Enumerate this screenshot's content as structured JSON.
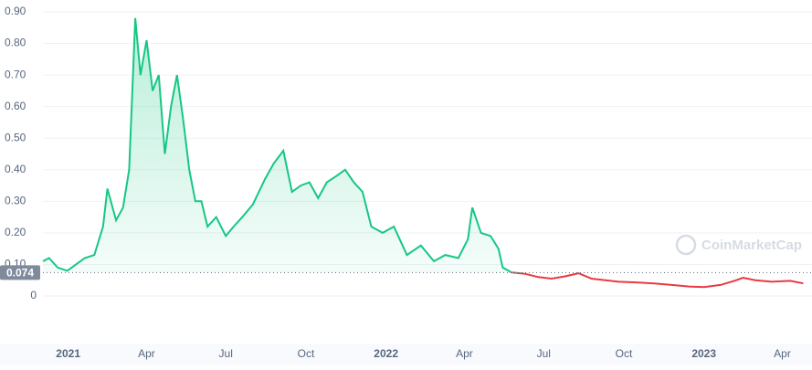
{
  "chart_data": {
    "type": "line",
    "watermark": "CoinMarketCap",
    "x": [
      "2020-12-03",
      "2020-12-10",
      "2020-12-20",
      "2020-12-31",
      "2021-01-10",
      "2021-01-20",
      "2021-01-31",
      "2021-02-10",
      "2021-02-15",
      "2021-02-25",
      "2021-03-05",
      "2021-03-12",
      "2021-03-19",
      "2021-03-25",
      "2021-04-01",
      "2021-04-08",
      "2021-04-15",
      "2021-04-22",
      "2021-04-29",
      "2021-05-06",
      "2021-05-13",
      "2021-05-20",
      "2021-05-27",
      "2021-06-03",
      "2021-06-10",
      "2021-06-20",
      "2021-07-01",
      "2021-07-10",
      "2021-07-20",
      "2021-08-01",
      "2021-08-15",
      "2021-08-25",
      "2021-09-05",
      "2021-09-15",
      "2021-09-25",
      "2021-10-05",
      "2021-10-15",
      "2021-10-25",
      "2021-11-05",
      "2021-11-15",
      "2021-11-25",
      "2021-12-05",
      "2021-12-15",
      "2021-12-28",
      "2022-01-10",
      "2022-01-25",
      "2022-02-10",
      "2022-02-25",
      "2022-03-10",
      "2022-03-25",
      "2022-04-05",
      "2022-04-10",
      "2022-04-20",
      "2022-05-01",
      "2022-05-10",
      "2022-05-15",
      "2022-05-25",
      "2022-06-10",
      "2022-06-25",
      "2022-07-10",
      "2022-07-25",
      "2022-08-10",
      "2022-08-25",
      "2022-09-10",
      "2022-09-25",
      "2022-10-15",
      "2022-11-05",
      "2022-11-25",
      "2022-12-15",
      "2023-01-01",
      "2023-01-20",
      "2023-02-05",
      "2023-02-15",
      "2023-03-01",
      "2023-03-20",
      "2023-04-10",
      "2023-04-25"
    ],
    "series": [
      {
        "values": [
          0.11,
          0.12,
          0.09,
          0.08,
          0.1,
          0.12,
          0.13,
          0.22,
          0.34,
          0.24,
          0.28,
          0.4,
          0.88,
          0.7,
          0.81,
          0.65,
          0.7,
          0.45,
          0.6,
          0.7,
          0.56,
          0.4,
          0.3,
          0.3,
          0.22,
          0.25,
          0.19,
          0.22,
          0.25,
          0.29,
          0.37,
          0.42,
          0.46,
          0.33,
          0.35,
          0.36,
          0.31,
          0.36,
          0.38,
          0.4,
          0.36,
          0.33,
          0.22,
          0.2,
          0.22,
          0.13,
          0.16,
          0.11,
          0.13,
          0.12,
          0.18,
          0.28,
          0.2,
          0.19,
          0.15,
          0.09,
          0.075,
          0.07,
          0.06,
          0.055,
          0.062,
          0.072,
          0.055,
          0.05,
          0.045,
          0.043,
          0.04,
          0.035,
          0.03,
          0.028,
          0.035,
          0.048,
          0.058,
          0.05,
          0.045,
          0.048,
          0.04
        ]
      }
    ],
    "colors": {
      "up": "#16c784",
      "down": "#ea3943"
    },
    "reference_line": 0.074,
    "xlim": [
      "2020-12-03",
      "2023-05-03"
    ],
    "xticks": [
      {
        "value": "2021-01-01",
        "label": "2021"
      },
      {
        "value": "2021-04-01",
        "label": "Apr"
      },
      {
        "value": "2021-07-01",
        "label": "Jul"
      },
      {
        "value": "2021-10-01",
        "label": "Oct"
      },
      {
        "value": "2022-01-01",
        "label": "2022"
      },
      {
        "value": "2022-04-01",
        "label": "Apr"
      },
      {
        "value": "2022-07-01",
        "label": "Jul"
      },
      {
        "value": "2022-10-01",
        "label": "Oct"
      },
      {
        "value": "2023-01-01",
        "label": "2023"
      },
      {
        "value": "2023-04-01",
        "label": "Apr"
      }
    ],
    "ylim": [
      0,
      0.9
    ],
    "yticks": [
      0,
      {
        "value": 0.1,
        "label": "0.10"
      },
      {
        "value": 0.2,
        "label": "0.20"
      },
      {
        "value": 0.3,
        "label": "0.30"
      },
      {
        "value": 0.4,
        "label": "0.40"
      },
      {
        "value": 0.5,
        "label": "0.50"
      },
      {
        "value": 0.6,
        "label": "0.60"
      },
      {
        "value": 0.7,
        "label": "0.70"
      },
      {
        "value": 0.8,
        "label": "0.80"
      },
      {
        "value": 0.9,
        "label": "0.90"
      }
    ],
    "grid": true
  }
}
